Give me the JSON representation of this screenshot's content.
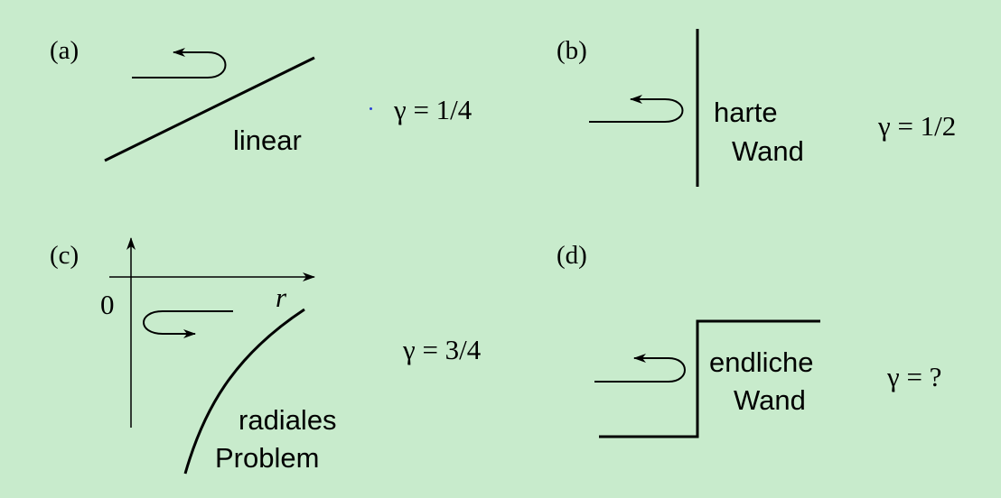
{
  "panels": {
    "a": {
      "label": "(a)",
      "caption": "linear",
      "gamma": "γ = 1/4"
    },
    "b": {
      "label": "(b)",
      "caption_line1": "harte",
      "caption_line2": "Wand",
      "gamma": "γ = 1/2"
    },
    "c": {
      "label": "(c)",
      "origin_label": "0",
      "axis_label": "r",
      "caption_line1": "radiales",
      "caption_line2": "Problem",
      "gamma": "γ = 3/4"
    },
    "d": {
      "label": "(d)",
      "caption_line1": "endliche",
      "caption_line2": "Wand",
      "gamma": "γ = ?"
    }
  },
  "colors": {
    "background": "#c8ebcc",
    "ink": "#000000",
    "stray_dot": "#2a40d8"
  }
}
